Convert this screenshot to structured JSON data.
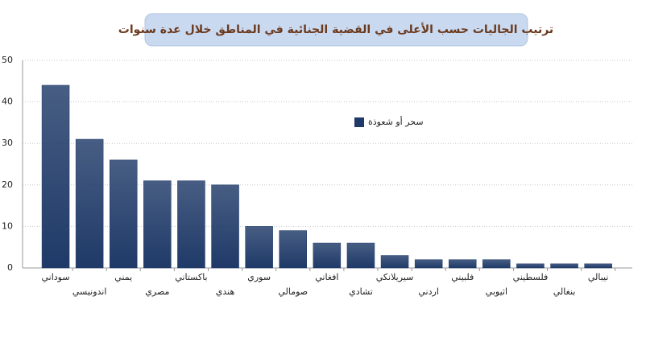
{
  "chart_data": {
    "type": "bar",
    "title": "ترتيب الجاليات حسب الأعلى في القضية الجنائية في المناطق خلال عدة سنوات",
    "categories": [
      "سوداني",
      "اندونيسي",
      "يمني",
      "مصري",
      "باكستاني",
      "هندي",
      "سوري",
      "صومالي",
      "افغاني",
      "تشادي",
      "سيريلانكي",
      "اردني",
      "فلبيني",
      "اثيوبي",
      "فلسطيني",
      "بنغالي",
      "نيبالي"
    ],
    "series": [
      {
        "name": "سحر أو شعوذة",
        "color": "#1f3a68",
        "values": [
          44,
          31,
          26,
          21,
          21,
          20,
          10,
          9,
          6,
          6,
          3,
          2,
          2,
          2,
          1,
          1,
          1
        ]
      }
    ],
    "ylim": [
      0,
      50
    ],
    "yticks": [
      0,
      10,
      20,
      30,
      40,
      50
    ],
    "grid": true,
    "legend": "center"
  }
}
